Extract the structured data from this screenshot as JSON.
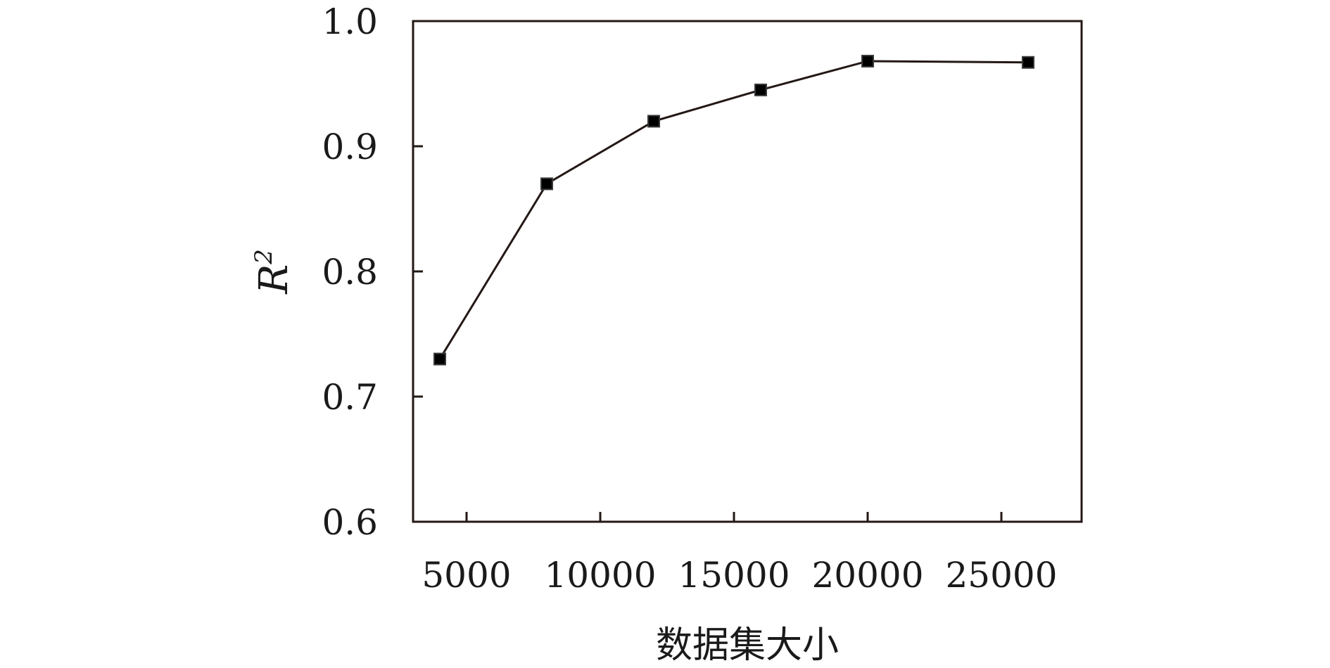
{
  "chart_data": {
    "type": "line",
    "title": "",
    "xlabel": "数据集大小",
    "ylabel": "R²",
    "ylabel_base": "R",
    "ylabel_sup": "2",
    "xlim": [
      3000,
      28000
    ],
    "ylim": [
      0.6,
      1.0
    ],
    "x_ticks": [
      5000,
      10000,
      15000,
      20000,
      25000
    ],
    "x_tick_labels": [
      "5000",
      "10000",
      "15000",
      "20000",
      "25000"
    ],
    "y_ticks": [
      0.6,
      0.7,
      0.8,
      0.9,
      1.0
    ],
    "y_tick_labels": [
      "0.6",
      "0.7",
      "0.8",
      "0.9",
      "1.0"
    ],
    "grid": false,
    "legend": "none",
    "series": [
      {
        "marker": "square",
        "color": "#231815",
        "x": [
          4000,
          8000,
          12000,
          16000,
          20000,
          26000
        ],
        "values": [
          0.73,
          0.87,
          0.92,
          0.945,
          0.968,
          0.967
        ]
      }
    ]
  }
}
